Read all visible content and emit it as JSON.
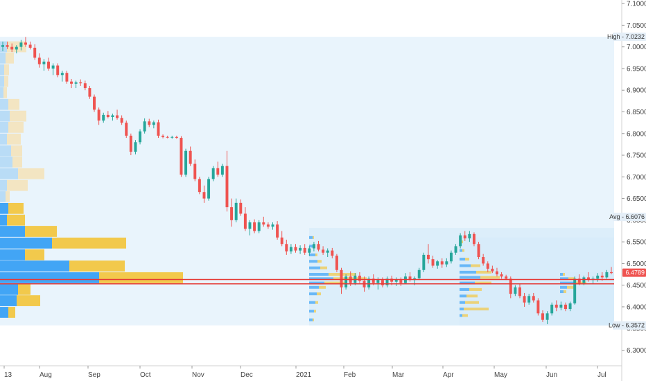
{
  "chart_data": {
    "type": "candlestick",
    "x_labels": [
      "13",
      "Aug",
      "Sep",
      "Oct",
      "Nov",
      "Dec",
      "2021",
      "Feb",
      "Mar",
      "Apr",
      "May",
      "Jun",
      "Jul"
    ],
    "y_ticks": [
      "7.1000",
      "7.0500",
      "7.0000",
      "6.9500",
      "6.9000",
      "6.8500",
      "6.8000",
      "6.7500",
      "6.7000",
      "6.6500",
      "6.6000",
      "6.5500",
      "6.5000",
      "6.4500",
      "6.4000",
      "6.3500",
      "6.3000"
    ],
    "ylim": [
      6.28,
      7.105
    ],
    "markers": {
      "high": {
        "label": "High",
        "value": "7.0232"
      },
      "avg": {
        "label": "Avg",
        "value": "6.6076"
      },
      "last": {
        "value": "6.4789"
      },
      "low": {
        "label": "Low",
        "value": "6.3572"
      }
    },
    "red_lines": [
      6.463,
      6.453
    ],
    "colors": {
      "up": "#26a69a",
      "down": "#ef5350",
      "vp_up": "#42a5f5",
      "vp_down": "#f2c94c",
      "range_fill": "#e7f3fc",
      "line": "#e53935"
    },
    "profile_rows": [
      {
        "low": 6.986,
        "up": 10,
        "down": 28
      },
      {
        "low": 6.96,
        "up": 8,
        "down": 12
      },
      {
        "low": 6.933,
        "up": 6,
        "down": 7
      },
      {
        "low": 6.906,
        "up": 6,
        "down": 6
      },
      {
        "low": 6.88,
        "up": 5,
        "down": 5
      },
      {
        "low": 6.853,
        "up": 12,
        "down": 16
      },
      {
        "low": 6.826,
        "up": 14,
        "down": 24
      },
      {
        "low": 6.8,
        "up": 12,
        "down": 22
      },
      {
        "low": 6.773,
        "up": 10,
        "down": 20
      },
      {
        "low": 6.746,
        "up": 16,
        "down": 16
      },
      {
        "low": 6.72,
        "up": 18,
        "down": 14
      },
      {
        "low": 6.693,
        "up": 26,
        "down": 38
      },
      {
        "low": 6.666,
        "up": 10,
        "down": 30
      },
      {
        "low": 6.64,
        "up": 8,
        "down": 6
      },
      {
        "low": 6.613,
        "up": 12,
        "down": 22
      },
      {
        "low": 6.586,
        "up": 10,
        "down": 26
      },
      {
        "low": 6.56,
        "up": 36,
        "down": 46
      },
      {
        "low": 6.533,
        "up": 75,
        "down": 107
      },
      {
        "low": 6.506,
        "up": 36,
        "down": 28
      },
      {
        "low": 6.48,
        "up": 100,
        "down": 80
      },
      {
        "low": 6.453,
        "up": 143,
        "down": 121
      },
      {
        "low": 6.426,
        "up": 26,
        "down": 18
      },
      {
        "low": 6.4,
        "up": 24,
        "down": 34
      },
      {
        "low": 6.373,
        "up": 12,
        "down": 10
      }
    ],
    "segment_profiles": [
      {
        "x0": 446,
        "x1": 577,
        "ymin": 6.357,
        "ymax": 6.582,
        "rows": [
          [
            6.56,
            5,
            2
          ],
          [
            6.54,
            7,
            2
          ],
          [
            6.52,
            9,
            3
          ],
          [
            6.505,
            12,
            6
          ],
          [
            6.49,
            16,
            10
          ],
          [
            6.475,
            28,
            40
          ],
          [
            6.465,
            35,
            48
          ],
          [
            6.455,
            22,
            30
          ],
          [
            6.445,
            14,
            10
          ],
          [
            6.43,
            11,
            6
          ],
          [
            6.41,
            9,
            4
          ],
          [
            6.39,
            7,
            3
          ],
          [
            6.37,
            5,
            2
          ]
        ]
      },
      {
        "x0": 663,
        "x1": 742,
        "ymin": 6.357,
        "ymax": 6.56,
        "rows": [
          [
            6.55,
            3,
            2
          ],
          [
            6.53,
            4,
            3
          ],
          [
            6.51,
            8,
            6
          ],
          [
            6.495,
            16,
            14
          ],
          [
            6.48,
            24,
            22
          ],
          [
            6.468,
            30,
            28
          ],
          [
            6.455,
            22,
            24
          ],
          [
            6.44,
            14,
            18
          ],
          [
            6.425,
            10,
            16
          ],
          [
            6.41,
            8,
            20
          ],
          [
            6.395,
            6,
            36
          ],
          [
            6.38,
            4,
            8
          ]
        ]
      },
      {
        "x0": 808,
        "x1": 886,
        "ymin": 6.357,
        "ymax": 6.48,
        "rows": [
          [
            6.475,
            4,
            3
          ],
          [
            6.465,
            12,
            10
          ],
          [
            6.455,
            20,
            18
          ],
          [
            6.445,
            10,
            12
          ],
          [
            6.435,
            5,
            4
          ]
        ]
      }
    ],
    "candles": [
      {
        "o": 7.0,
        "h": 7.012,
        "l": 6.99,
        "c": 7.004
      },
      {
        "o": 7.004,
        "h": 7.012,
        "l": 6.995,
        "c": 7.0
      },
      {
        "o": 7.0,
        "h": 7.008,
        "l": 6.988,
        "c": 6.994
      },
      {
        "o": 6.994,
        "h": 7.004,
        "l": 6.985,
        "c": 7.0
      },
      {
        "o": 7.0,
        "h": 7.016,
        "l": 6.992,
        "c": 7.01
      },
      {
        "o": 7.01,
        "h": 7.023,
        "l": 7.0,
        "c": 7.005
      },
      {
        "o": 7.005,
        "h": 7.012,
        "l": 6.994,
        "c": 6.998
      },
      {
        "o": 6.998,
        "h": 7.006,
        "l": 6.97,
        "c": 6.975
      },
      {
        "o": 6.975,
        "h": 6.985,
        "l": 6.952,
        "c": 6.96
      },
      {
        "o": 6.96,
        "h": 6.972,
        "l": 6.945,
        "c": 6.966
      },
      {
        "o": 6.966,
        "h": 6.975,
        "l": 6.945,
        "c": 6.95
      },
      {
        "o": 6.95,
        "h": 6.962,
        "l": 6.935,
        "c": 6.957
      },
      {
        "o": 6.957,
        "h": 6.962,
        "l": 6.93,
        "c": 6.935
      },
      {
        "o": 6.935,
        "h": 6.945,
        "l": 6.92,
        "c": 6.94
      },
      {
        "o": 6.94,
        "h": 6.945,
        "l": 6.915,
        "c": 6.92
      },
      {
        "o": 6.92,
        "h": 6.926,
        "l": 6.905,
        "c": 6.915
      },
      {
        "o": 6.915,
        "h": 6.922,
        "l": 6.905,
        "c": 6.918
      },
      {
        "o": 6.918,
        "h": 6.925,
        "l": 6.91,
        "c": 6.916
      },
      {
        "o": 6.916,
        "h": 6.922,
        "l": 6.9,
        "c": 6.905
      },
      {
        "o": 6.905,
        "h": 6.91,
        "l": 6.88,
        "c": 6.885
      },
      {
        "o": 6.885,
        "h": 6.89,
        "l": 6.85,
        "c": 6.855
      },
      {
        "o": 6.855,
        "h": 6.86,
        "l": 6.82,
        "c": 6.83
      },
      {
        "o": 6.83,
        "h": 6.848,
        "l": 6.825,
        "c": 6.843
      },
      {
        "o": 6.843,
        "h": 6.852,
        "l": 6.835,
        "c": 6.838
      },
      {
        "o": 6.838,
        "h": 6.846,
        "l": 6.83,
        "c": 6.842
      },
      {
        "o": 6.842,
        "h": 6.855,
        "l": 6.832,
        "c": 6.836
      },
      {
        "o": 6.836,
        "h": 6.842,
        "l": 6.82,
        "c": 6.825
      },
      {
        "o": 6.825,
        "h": 6.83,
        "l": 6.79,
        "c": 6.795
      },
      {
        "o": 6.795,
        "h": 6.8,
        "l": 6.75,
        "c": 6.758
      },
      {
        "o": 6.758,
        "h": 6.785,
        "l": 6.752,
        "c": 6.78
      },
      {
        "o": 6.78,
        "h": 6.81,
        "l": 6.775,
        "c": 6.805
      },
      {
        "o": 6.805,
        "h": 6.835,
        "l": 6.8,
        "c": 6.828
      },
      {
        "o": 6.828,
        "h": 6.834,
        "l": 6.815,
        "c": 6.82
      },
      {
        "o": 6.82,
        "h": 6.83,
        "l": 6.812,
        "c": 6.826
      },
      {
        "o": 6.826,
        "h": 6.832,
        "l": 6.79,
        "c": 6.795
      },
      {
        "o": 6.795,
        "h": 6.798,
        "l": 6.789,
        "c": 6.792
      },
      {
        "o": 6.792,
        "h": 6.795,
        "l": 6.789,
        "c": 6.791
      },
      {
        "o": 6.791,
        "h": 6.795,
        "l": 6.788,
        "c": 6.792
      },
      {
        "o": 6.792,
        "h": 6.795,
        "l": 6.788,
        "c": 6.79
      },
      {
        "o": 6.79,
        "h": 6.794,
        "l": 6.7,
        "c": 6.705
      },
      {
        "o": 6.705,
        "h": 6.765,
        "l": 6.7,
        "c": 6.76
      },
      {
        "o": 6.76,
        "h": 6.77,
        "l": 6.725,
        "c": 6.73
      },
      {
        "o": 6.73,
        "h": 6.74,
        "l": 6.69,
        "c": 6.695
      },
      {
        "o": 6.695,
        "h": 6.7,
        "l": 6.66,
        "c": 6.665
      },
      {
        "o": 6.665,
        "h": 6.68,
        "l": 6.64,
        "c": 6.65
      },
      {
        "o": 6.65,
        "h": 6.7,
        "l": 6.645,
        "c": 6.695
      },
      {
        "o": 6.695,
        "h": 6.725,
        "l": 6.69,
        "c": 6.72
      },
      {
        "o": 6.72,
        "h": 6.735,
        "l": 6.7,
        "c": 6.705
      },
      {
        "o": 6.705,
        "h": 6.73,
        "l": 6.7,
        "c": 6.725
      },
      {
        "o": 6.725,
        "h": 6.76,
        "l": 6.62,
        "c": 6.63
      },
      {
        "o": 6.63,
        "h": 6.65,
        "l": 6.585,
        "c": 6.6
      },
      {
        "o": 6.6,
        "h": 6.65,
        "l": 6.595,
        "c": 6.64
      },
      {
        "o": 6.64,
        "h": 6.648,
        "l": 6.61,
        "c": 6.615
      },
      {
        "o": 6.615,
        "h": 6.63,
        "l": 6.575,
        "c": 6.58
      },
      {
        "o": 6.58,
        "h": 6.6,
        "l": 6.565,
        "c": 6.595
      },
      {
        "o": 6.595,
        "h": 6.602,
        "l": 6.57,
        "c": 6.575
      },
      {
        "o": 6.575,
        "h": 6.6,
        "l": 6.57,
        "c": 6.595
      },
      {
        "o": 6.595,
        "h": 6.608,
        "l": 6.585,
        "c": 6.59
      },
      {
        "o": 6.59,
        "h": 6.595,
        "l": 6.58,
        "c": 6.585
      },
      {
        "o": 6.585,
        "h": 6.595,
        "l": 6.578,
        "c": 6.59
      },
      {
        "o": 6.59,
        "h": 6.598,
        "l": 6.555,
        "c": 6.56
      },
      {
        "o": 6.56,
        "h": 6.575,
        "l": 6.54,
        "c": 6.545
      },
      {
        "o": 6.545,
        "h": 6.555,
        "l": 6.52,
        "c": 6.528
      },
      {
        "o": 6.528,
        "h": 6.545,
        "l": 6.522,
        "c": 6.538
      },
      {
        "o": 6.538,
        "h": 6.545,
        "l": 6.525,
        "c": 6.53
      },
      {
        "o": 6.53,
        "h": 6.542,
        "l": 6.522,
        "c": 6.536
      },
      {
        "o": 6.536,
        "h": 6.545,
        "l": 6.52,
        "c": 6.525
      },
      {
        "o": 6.525,
        "h": 6.54,
        "l": 6.518,
        "c": 6.535
      },
      {
        "o": 6.535,
        "h": 6.55,
        "l": 6.528,
        "c": 6.545
      },
      {
        "o": 6.545,
        "h": 6.552,
        "l": 6.528,
        "c": 6.532
      },
      {
        "o": 6.532,
        "h": 6.54,
        "l": 6.52,
        "c": 6.525
      },
      {
        "o": 6.525,
        "h": 6.535,
        "l": 6.515,
        "c": 6.53
      },
      {
        "o": 6.53,
        "h": 6.536,
        "l": 6.512,
        "c": 6.518
      },
      {
        "o": 6.518,
        "h": 6.522,
        "l": 6.48,
        "c": 6.485
      },
      {
        "o": 6.485,
        "h": 6.49,
        "l": 6.43,
        "c": 6.445
      },
      {
        "o": 6.445,
        "h": 6.475,
        "l": 6.44,
        "c": 6.47
      },
      {
        "o": 6.47,
        "h": 6.482,
        "l": 6.448,
        "c": 6.455
      },
      {
        "o": 6.455,
        "h": 6.478,
        "l": 6.45,
        "c": 6.472
      },
      {
        "o": 6.472,
        "h": 6.48,
        "l": 6.455,
        "c": 6.46
      },
      {
        "o": 6.46,
        "h": 6.47,
        "l": 6.435,
        "c": 6.445
      },
      {
        "o": 6.445,
        "h": 6.47,
        "l": 6.44,
        "c": 6.465
      },
      {
        "o": 6.465,
        "h": 6.475,
        "l": 6.45,
        "c": 6.455
      },
      {
        "o": 6.455,
        "h": 6.468,
        "l": 6.44,
        "c": 6.462
      },
      {
        "o": 6.462,
        "h": 6.468,
        "l": 6.445,
        "c": 6.45
      },
      {
        "o": 6.45,
        "h": 6.47,
        "l": 6.445,
        "c": 6.465
      },
      {
        "o": 6.465,
        "h": 6.472,
        "l": 6.45,
        "c": 6.458
      },
      {
        "o": 6.458,
        "h": 6.468,
        "l": 6.448,
        "c": 6.462
      },
      {
        "o": 6.462,
        "h": 6.468,
        "l": 6.448,
        "c": 6.455
      },
      {
        "o": 6.455,
        "h": 6.478,
        "l": 6.452,
        "c": 6.47
      },
      {
        "o": 6.47,
        "h": 6.48,
        "l": 6.458,
        "c": 6.462
      },
      {
        "o": 6.462,
        "h": 6.47,
        "l": 6.45,
        "c": 6.466
      },
      {
        "o": 6.466,
        "h": 6.49,
        "l": 6.462,
        "c": 6.485
      },
      {
        "o": 6.485,
        "h": 6.525,
        "l": 6.48,
        "c": 6.52
      },
      {
        "o": 6.52,
        "h": 6.545,
        "l": 6.5,
        "c": 6.51
      },
      {
        "o": 6.51,
        "h": 6.518,
        "l": 6.49,
        "c": 6.495
      },
      {
        "o": 6.495,
        "h": 6.508,
        "l": 6.488,
        "c": 6.505
      },
      {
        "o": 6.505,
        "h": 6.512,
        "l": 6.49,
        "c": 6.498
      },
      {
        "o": 6.498,
        "h": 6.512,
        "l": 6.492,
        "c": 6.505
      },
      {
        "o": 6.505,
        "h": 6.53,
        "l": 6.5,
        "c": 6.525
      },
      {
        "o": 6.525,
        "h": 6.545,
        "l": 6.52,
        "c": 6.54
      },
      {
        "o": 6.54,
        "h": 6.57,
        "l": 6.535,
        "c": 6.565
      },
      {
        "o": 6.565,
        "h": 6.575,
        "l": 6.552,
        "c": 6.558
      },
      {
        "o": 6.558,
        "h": 6.575,
        "l": 6.55,
        "c": 6.568
      },
      {
        "o": 6.568,
        "h": 6.572,
        "l": 6.54,
        "c": 6.545
      },
      {
        "o": 6.545,
        "h": 6.55,
        "l": 6.51,
        "c": 6.515
      },
      {
        "o": 6.515,
        "h": 6.522,
        "l": 6.495,
        "c": 6.5
      },
      {
        "o": 6.5,
        "h": 6.505,
        "l": 6.48,
        "c": 6.488
      },
      {
        "o": 6.488,
        "h": 6.495,
        "l": 6.478,
        "c": 6.482
      },
      {
        "o": 6.482,
        "h": 6.49,
        "l": 6.47,
        "c": 6.475
      },
      {
        "o": 6.475,
        "h": 6.48,
        "l": 6.465,
        "c": 6.47
      },
      {
        "o": 6.47,
        "h": 6.474,
        "l": 6.462,
        "c": 6.465
      },
      {
        "o": 6.465,
        "h": 6.47,
        "l": 6.42,
        "c": 6.43
      },
      {
        "o": 6.43,
        "h": 6.45,
        "l": 6.425,
        "c": 6.445
      },
      {
        "o": 6.445,
        "h": 6.452,
        "l": 6.42,
        "c": 6.425
      },
      {
        "o": 6.425,
        "h": 6.432,
        "l": 6.4,
        "c": 6.41
      },
      {
        "o": 6.41,
        "h": 6.43,
        "l": 6.405,
        "c": 6.425
      },
      {
        "o": 6.425,
        "h": 6.432,
        "l": 6.41,
        "c": 6.415
      },
      {
        "o": 6.415,
        "h": 6.42,
        "l": 6.38,
        "c": 6.385
      },
      {
        "o": 6.385,
        "h": 6.392,
        "l": 6.365,
        "c": 6.37
      },
      {
        "o": 6.37,
        "h": 6.39,
        "l": 6.36,
        "c": 6.385
      },
      {
        "o": 6.385,
        "h": 6.41,
        "l": 6.38,
        "c": 6.405
      },
      {
        "o": 6.405,
        "h": 6.415,
        "l": 6.39,
        "c": 6.398
      },
      {
        "o": 6.398,
        "h": 6.412,
        "l": 6.392,
        "c": 6.405
      },
      {
        "o": 6.405,
        "h": 6.41,
        "l": 6.39,
        "c": 6.395
      },
      {
        "o": 6.395,
        "h": 6.412,
        "l": 6.39,
        "c": 6.408
      },
      {
        "o": 6.408,
        "h": 6.47,
        "l": 6.405,
        "c": 6.465
      },
      {
        "o": 6.465,
        "h": 6.475,
        "l": 6.45,
        "c": 6.455
      },
      {
        "o": 6.455,
        "h": 6.472,
        "l": 6.45,
        "c": 6.468
      },
      {
        "o": 6.468,
        "h": 6.48,
        "l": 6.458,
        "c": 6.462
      },
      {
        "o": 6.462,
        "h": 6.47,
        "l": 6.452,
        "c": 6.465
      },
      {
        "o": 6.465,
        "h": 6.478,
        "l": 6.458,
        "c": 6.472
      },
      {
        "o": 6.472,
        "h": 6.48,
        "l": 6.46,
        "c": 6.468
      },
      {
        "o": 6.468,
        "h": 6.485,
        "l": 6.465,
        "c": 6.48
      },
      {
        "o": 6.48,
        "h": 6.492,
        "l": 6.475,
        "c": 6.478
      }
    ]
  }
}
